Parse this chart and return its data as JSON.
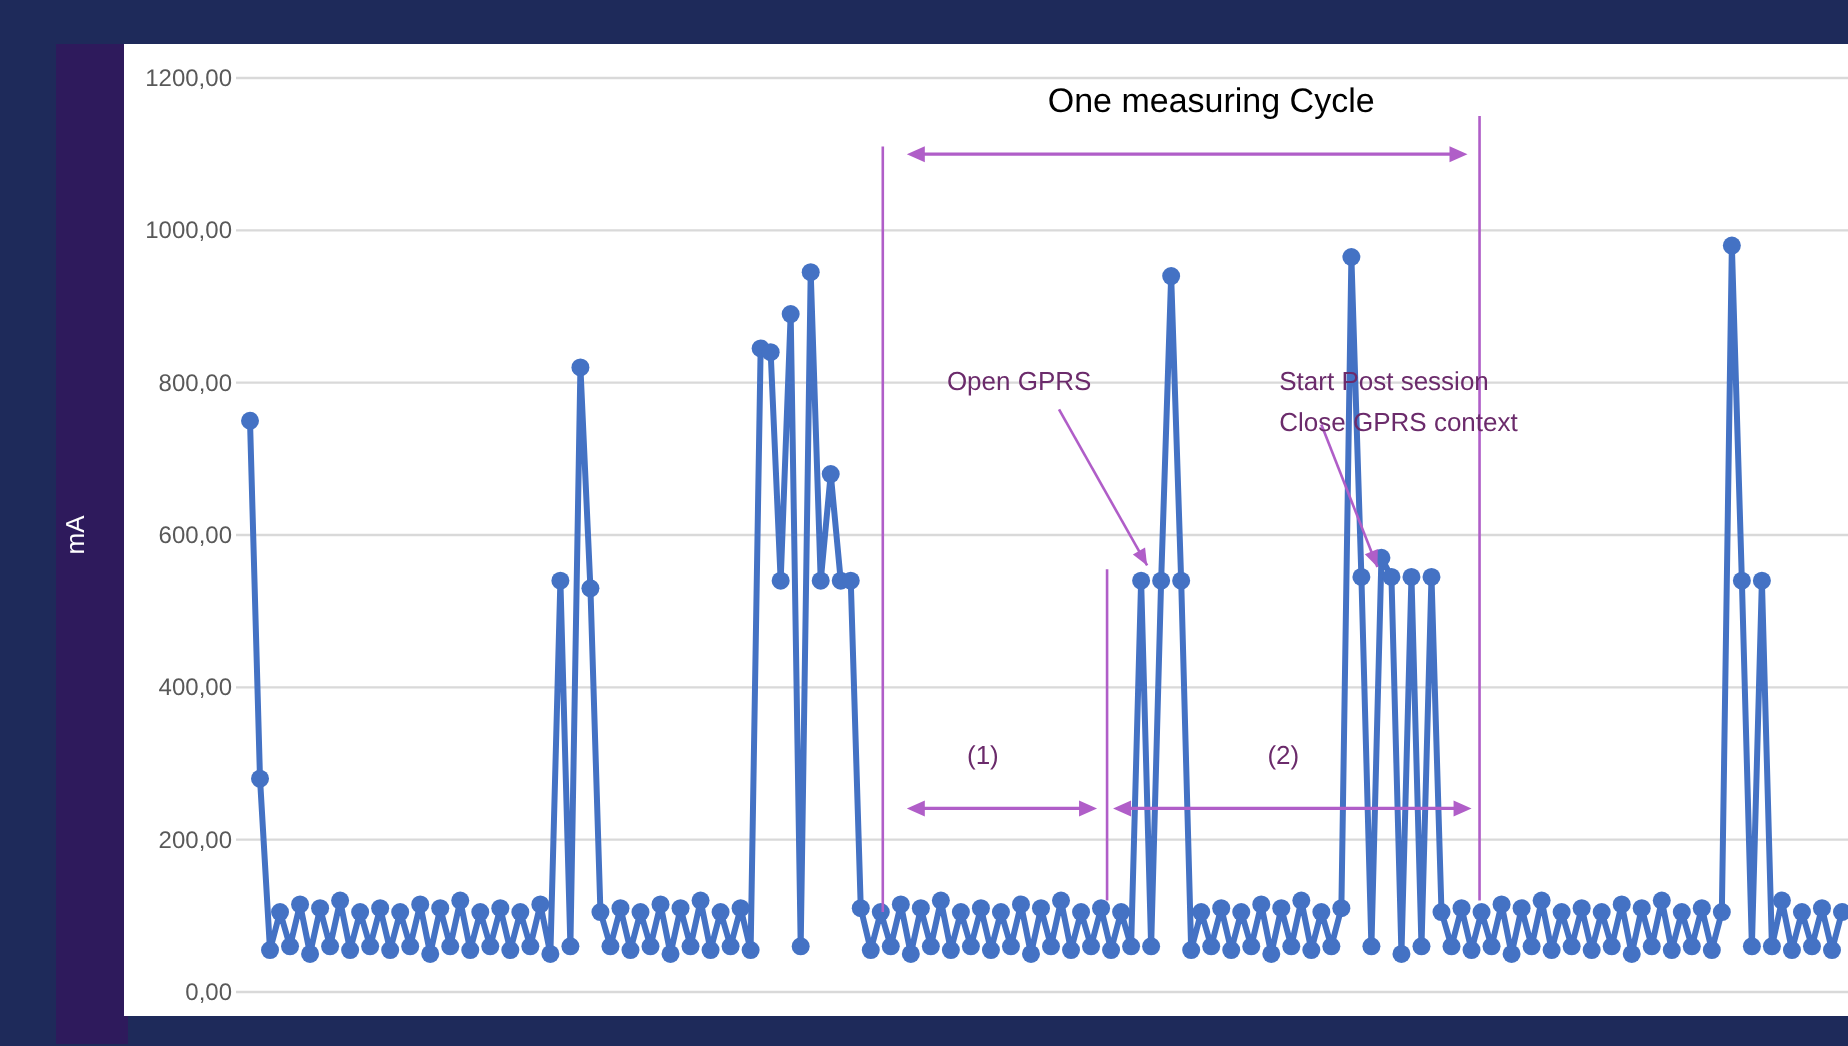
{
  "chart_data": {
    "type": "line",
    "ylabel": "mA",
    "tick_labels": "y",
    "grid": "y",
    "marker": "circle",
    "line_style": "solid",
    "ylim": [
      0,
      1200
    ],
    "yticks": [
      {
        "value": 0,
        "label": "0,00"
      },
      {
        "value": 200,
        "label": "200,00"
      },
      {
        "value": 400,
        "label": "400,00"
      },
      {
        "value": 600,
        "label": "600,00"
      },
      {
        "value": 800,
        "label": "800,00"
      },
      {
        "value": 1000,
        "label": "1000,00"
      },
      {
        "value": 1200,
        "label": "1200,00"
      }
    ],
    "categories": [
      null,
      null,
      null,
      null,
      null,
      null,
      null,
      null,
      null,
      null,
      null,
      null,
      null,
      null,
      null,
      null,
      null,
      null,
      null,
      null,
      null,
      null,
      null,
      null,
      null,
      null,
      null,
      null,
      null,
      null,
      null,
      null,
      null,
      null,
      null,
      null,
      null,
      null,
      null,
      null,
      null,
      null,
      null,
      null,
      null,
      null,
      null,
      null,
      null,
      null,
      null,
      null,
      null,
      null,
      null,
      null,
      null,
      null,
      null,
      null,
      null,
      null,
      null,
      null,
      null,
      null,
      null,
      null,
      null,
      null,
      null,
      null,
      null,
      null,
      null,
      null,
      null,
      null,
      null,
      null,
      null,
      null,
      null,
      null,
      null,
      null,
      null,
      null,
      null,
      null,
      null,
      null,
      null,
      null,
      null,
      null,
      null,
      null,
      null,
      null,
      null,
      null,
      null,
      null,
      null,
      null,
      null,
      null,
      null,
      null,
      null,
      null,
      null,
      null,
      null,
      null,
      null,
      null,
      null,
      null,
      null,
      null,
      null,
      null,
      null,
      null,
      null,
      null,
      null,
      null,
      null,
      null,
      null,
      null,
      null,
      null,
      null,
      null,
      null,
      null,
      null,
      null,
      null,
      null,
      null,
      null,
      null,
      null,
      null,
      null,
      null,
      null,
      null,
      null,
      null,
      null,
      null,
      null,
      null,
      null
    ],
    "series": [
      {
        "color": "#4472c4",
        "values": [
          750,
          280,
          55,
          105,
          60,
          115,
          50,
          110,
          60,
          120,
          55,
          105,
          60,
          110,
          55,
          105,
          60,
          115,
          50,
          110,
          60,
          120,
          55,
          105,
          60,
          110,
          55,
          105,
          60,
          115,
          50,
          540,
          60,
          820,
          530,
          105,
          60,
          110,
          55,
          105,
          60,
          115,
          50,
          110,
          60,
          120,
          55,
          105,
          60,
          110,
          55,
          845,
          840,
          540,
          890,
          60,
          945,
          540,
          680,
          540,
          540,
          110,
          55,
          105,
          60,
          115,
          50,
          110,
          60,
          120,
          55,
          105,
          60,
          110,
          55,
          105,
          60,
          115,
          50,
          110,
          60,
          120,
          55,
          105,
          60,
          110,
          55,
          105,
          60,
          540,
          60,
          540,
          940,
          540,
          55,
          105,
          60,
          110,
          55,
          105,
          60,
          115,
          50,
          110,
          60,
          120,
          55,
          105,
          60,
          110,
          965,
          545,
          60,
          570,
          545,
          50,
          545,
          60,
          545,
          105,
          60,
          110,
          55,
          105,
          60,
          115,
          50,
          110,
          60,
          120,
          55,
          105,
          60,
          110,
          55,
          105,
          60,
          115,
          50,
          110,
          60,
          120,
          55,
          105,
          60,
          110,
          55,
          105,
          980,
          540,
          60,
          540,
          60,
          120,
          55,
          105,
          60,
          110,
          55,
          105
        ]
      }
    ],
    "annotations": [
      "One measuring Cycle",
      "(1)",
      "(2)",
      "Open GPRS",
      "Start Post session",
      "Close GPRS context"
    ]
  }
}
